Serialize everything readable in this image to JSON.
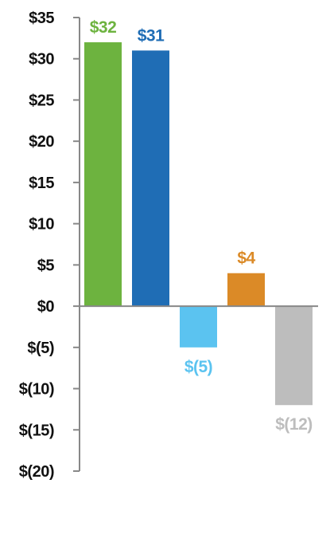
{
  "chart_data": {
    "type": "bar",
    "title": "",
    "xlabel": "",
    "ylabel": "",
    "ylim": [
      -20,
      35
    ],
    "yticks": [
      35,
      30,
      25,
      20,
      15,
      10,
      5,
      0,
      -5,
      -10,
      -15,
      -20
    ],
    "ytick_labels": [
      "$35",
      "$30",
      "$25",
      "$20",
      "$15",
      "$10",
      "$5",
      "$0",
      "$(5)",
      "$(10)",
      "$(15)",
      "$(20)"
    ],
    "grid": false,
    "legend": "none",
    "bars": [
      {
        "value": 32,
        "label": "$32",
        "color": "#6db33f"
      },
      {
        "value": 31,
        "label": "$31",
        "color": "#1f6db5"
      },
      {
        "value": -5,
        "label": "$(5)",
        "color": "#5bc3f0"
      },
      {
        "value": 4,
        "label": "$4",
        "color": "#db8a27"
      },
      {
        "value": -12,
        "label": "$(12)",
        "color": "#bdbdbd"
      }
    ],
    "axis_color": "#888888"
  }
}
